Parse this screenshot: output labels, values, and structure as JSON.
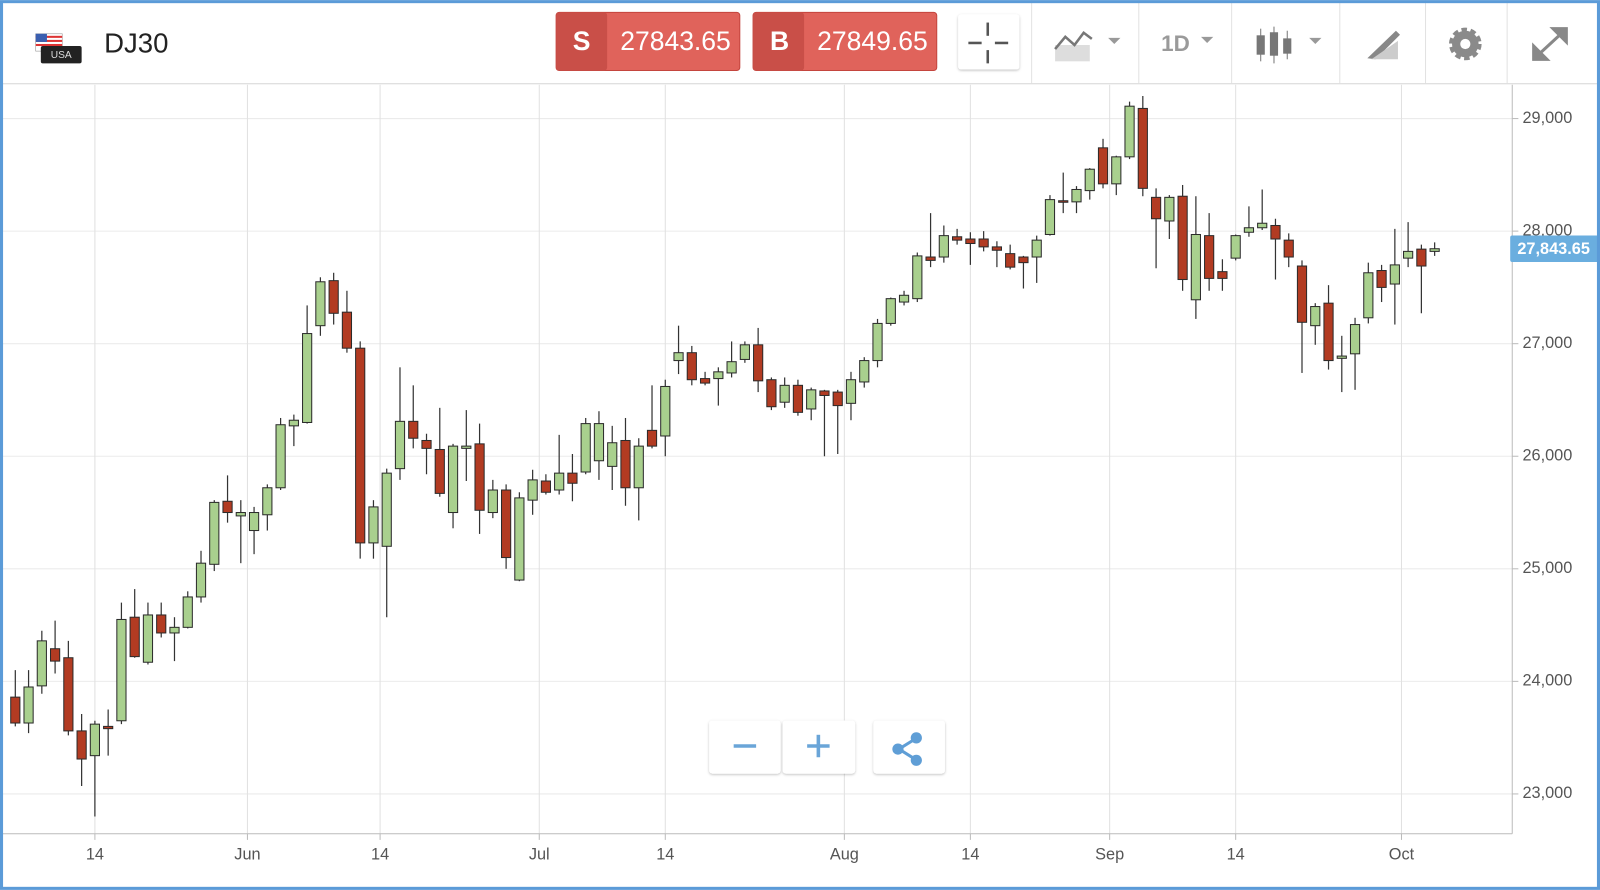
{
  "header": {
    "symbol": "DJ30",
    "flag_label": "USA",
    "sell": {
      "label": "S",
      "price": "27843.65"
    },
    "buy": {
      "label": "B",
      "price": "27849.65"
    },
    "interval": "1D"
  },
  "chart_data": {
    "type": "candlestick",
    "open": [
      23860,
      23630,
      23960,
      24290,
      24210,
      23560,
      23340,
      23600,
      23650,
      24570,
      24170,
      24590,
      24430,
      24480,
      24750,
      25040,
      25600,
      25470,
      25340,
      25480,
      25720,
      26270,
      26300,
      27160,
      27560,
      27280,
      26960,
      25230,
      25200,
      25890,
      26310,
      26140,
      26060,
      25500,
      26070,
      26110,
      25500,
      25700,
      24900,
      25610,
      25780,
      25700,
      25850,
      25860,
      25960,
      25910,
      26140,
      25720,
      26230,
      26180,
      26850,
      26920,
      26690,
      26690,
      26740,
      26860,
      26990,
      26680,
      26480,
      26630,
      26420,
      26580,
      26570,
      26470,
      26660,
      26850,
      27180,
      27370,
      27400,
      27770,
      27770,
      27950,
      27930,
      27930,
      27860,
      27800,
      27770,
      27770,
      27970,
      28270,
      28260,
      28360,
      28740,
      28420,
      28660,
      29090,
      28300,
      28090,
      28310,
      27390,
      27960,
      27640,
      27760,
      27990,
      28030,
      28050,
      27920,
      27690,
      27160,
      27360,
      26870,
      26910,
      27230,
      27650,
      27530,
      27760,
      27840,
      27820
    ],
    "high": [
      24100,
      24100,
      24450,
      24540,
      24360,
      23710,
      23650,
      23750,
      24700,
      24820,
      24700,
      24700,
      24570,
      24800,
      25160,
      25610,
      25830,
      25610,
      25550,
      25750,
      26340,
      26370,
      27340,
      27590,
      27630,
      27470,
      27020,
      25610,
      25890,
      26790,
      26630,
      26200,
      26430,
      26110,
      26410,
      26290,
      25790,
      25750,
      25680,
      25880,
      25840,
      26190,
      26020,
      26340,
      26400,
      26270,
      26340,
      26160,
      26630,
      26680,
      27160,
      26980,
      26750,
      26790,
      27020,
      27020,
      27140,
      26700,
      26700,
      26680,
      26610,
      26590,
      26590,
      26750,
      26880,
      27220,
      27410,
      27470,
      27810,
      28160,
      28050,
      28020,
      27990,
      28000,
      27910,
      27880,
      27780,
      27960,
      28320,
      28520,
      28400,
      28560,
      28820,
      28670,
      29150,
      29200,
      28380,
      28320,
      28410,
      28310,
      28160,
      27750,
      27970,
      28220,
      28370,
      28110,
      27980,
      27740,
      27360,
      27520,
      27070,
      27230,
      27720,
      27700,
      28020,
      28080,
      27880,
      27900
    ],
    "low": [
      23600,
      23540,
      23890,
      24070,
      23520,
      23070,
      22800,
      23340,
      23620,
      24210,
      24150,
      24390,
      24180,
      24470,
      24700,
      24980,
      25410,
      25050,
      25130,
      25340,
      25700,
      26090,
      26290,
      27070,
      27170,
      26920,
      25090,
      25090,
      24570,
      25790,
      26070,
      25840,
      25640,
      25360,
      25780,
      25310,
      25450,
      25000,
      24890,
      25480,
      25660,
      25660,
      25600,
      25840,
      25790,
      25700,
      25560,
      25430,
      26070,
      26000,
      26730,
      26630,
      26630,
      26450,
      26700,
      26830,
      26570,
      26410,
      26430,
      26360,
      26320,
      26000,
      26020,
      26320,
      26610,
      26790,
      27160,
      27340,
      27370,
      27680,
      27720,
      27880,
      27700,
      27820,
      27680,
      27660,
      27490,
      27540,
      27960,
      28160,
      28160,
      28280,
      28380,
      28320,
      28640,
      28310,
      27670,
      27930,
      27470,
      27220,
      27470,
      27470,
      27740,
      27950,
      28010,
      27570,
      27680,
      26740,
      26990,
      26770,
      26570,
      26590,
      27180,
      27370,
      27170,
      27680,
      27270,
      27780
    ],
    "close": [
      23630,
      23950,
      24360,
      24180,
      23560,
      23310,
      23620,
      23580,
      24550,
      24220,
      24590,
      24430,
      24480,
      24750,
      25050,
      25590,
      25500,
      25500,
      25500,
      25720,
      26280,
      26320,
      27090,
      27550,
      27270,
      26960,
      25230,
      25550,
      25850,
      26310,
      26160,
      26070,
      25670,
      26090,
      26090,
      25520,
      25700,
      25100,
      25630,
      25790,
      25680,
      25850,
      25760,
      26290,
      26290,
      26120,
      25720,
      26090,
      26090,
      26620,
      26920,
      26680,
      26650,
      26750,
      26840,
      26990,
      26670,
      26440,
      26630,
      26390,
      26590,
      26540,
      26450,
      26680,
      26850,
      27180,
      27400,
      27430,
      27780,
      27740,
      27960,
      27920,
      27890,
      27860,
      27830,
      27680,
      27720,
      27920,
      28280,
      28260,
      28370,
      28550,
      28420,
      28660,
      29110,
      28380,
      28110,
      28300,
      27570,
      27970,
      27580,
      27580,
      27960,
      28030,
      28070,
      27930,
      27770,
      27190,
      27330,
      26850,
      26890,
      27170,
      27630,
      27500,
      27700,
      27820,
      27690,
      27843.65
    ],
    "up_color": "#a9d08e",
    "down_color": "#b23b22",
    "xlim": [
      -1,
      112.85
    ],
    "xticks": [
      {
        "value": 6,
        "label": "14"
      },
      {
        "value": 17.5,
        "label": "Jun"
      },
      {
        "value": 27.5,
        "label": "14"
      },
      {
        "value": 39.5,
        "label": "Jul"
      },
      {
        "value": 49,
        "label": "14"
      },
      {
        "value": 62.5,
        "label": "Aug"
      },
      {
        "value": 72,
        "label": "14"
      },
      {
        "value": 82.5,
        "label": "Sep"
      },
      {
        "value": 92,
        "label": "14"
      },
      {
        "value": 104.5,
        "label": "Oct"
      }
    ],
    "ylim": [
      22646,
      29300
    ],
    "yticks": [
      {
        "value": 23000,
        "label": "23,000"
      },
      {
        "value": 24000,
        "label": "24,000"
      },
      {
        "value": 25000,
        "label": "25,000"
      },
      {
        "value": 26000,
        "label": "26,000"
      },
      {
        "value": 27000,
        "label": "27,000"
      },
      {
        "value": 28000,
        "label": "28,000"
      },
      {
        "value": 29000,
        "label": "29,000"
      }
    ],
    "last_price": {
      "value": 27843.65,
      "label": "27,843.65"
    },
    "grid": true
  }
}
